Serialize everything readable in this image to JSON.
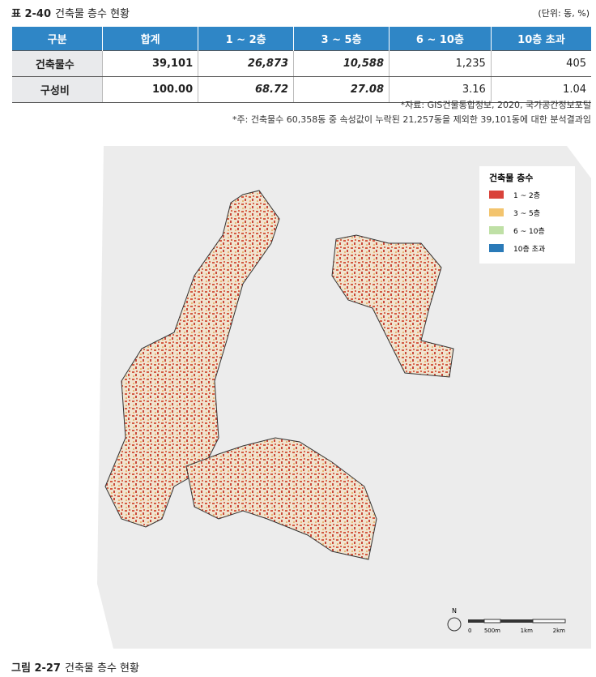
{
  "table_caption": {
    "label": "표 2-40",
    "title": "건축물 층수 현황",
    "unit": "(단위: 동, %)"
  },
  "table": {
    "header": [
      "구분",
      "합계",
      "1 ~ 2층",
      "3 ~ 5층",
      "6 ~ 10층",
      "10층 초과"
    ],
    "rows": [
      [
        "건축물수",
        "39,101",
        "26,873",
        "10,588",
        "1,235",
        "405"
      ],
      [
        "구성비",
        "100.00",
        "68.72",
        "27.08",
        "3.16",
        "1.04"
      ]
    ]
  },
  "notes": [
    "*자료: GIS건물통합정보, 2020, 국가공간정보포털",
    "*주: 건축물수 60,358동 중 속성값이 누락된 21,257동을 제외한 39,101동에 대한 분석결과임"
  ],
  "map": {
    "legend": {
      "title": "건축물 층수",
      "items": [
        {
          "label": "1 ~ 2층",
          "color": "#d9423a"
        },
        {
          "label": "3 ~ 5층",
          "color": "#f3c46e"
        },
        {
          "label": "6 ~ 10층",
          "color": "#bfe0a6"
        },
        {
          "label": "10층 초과",
          "color": "#2a7ab8"
        }
      ]
    },
    "scale": {
      "north": "N",
      "labels": [
        "0",
        "500m",
        "1km",
        "2km"
      ]
    }
  },
  "figure_caption": {
    "label": "그림 2-27",
    "title": "건축물 층수 현황"
  }
}
